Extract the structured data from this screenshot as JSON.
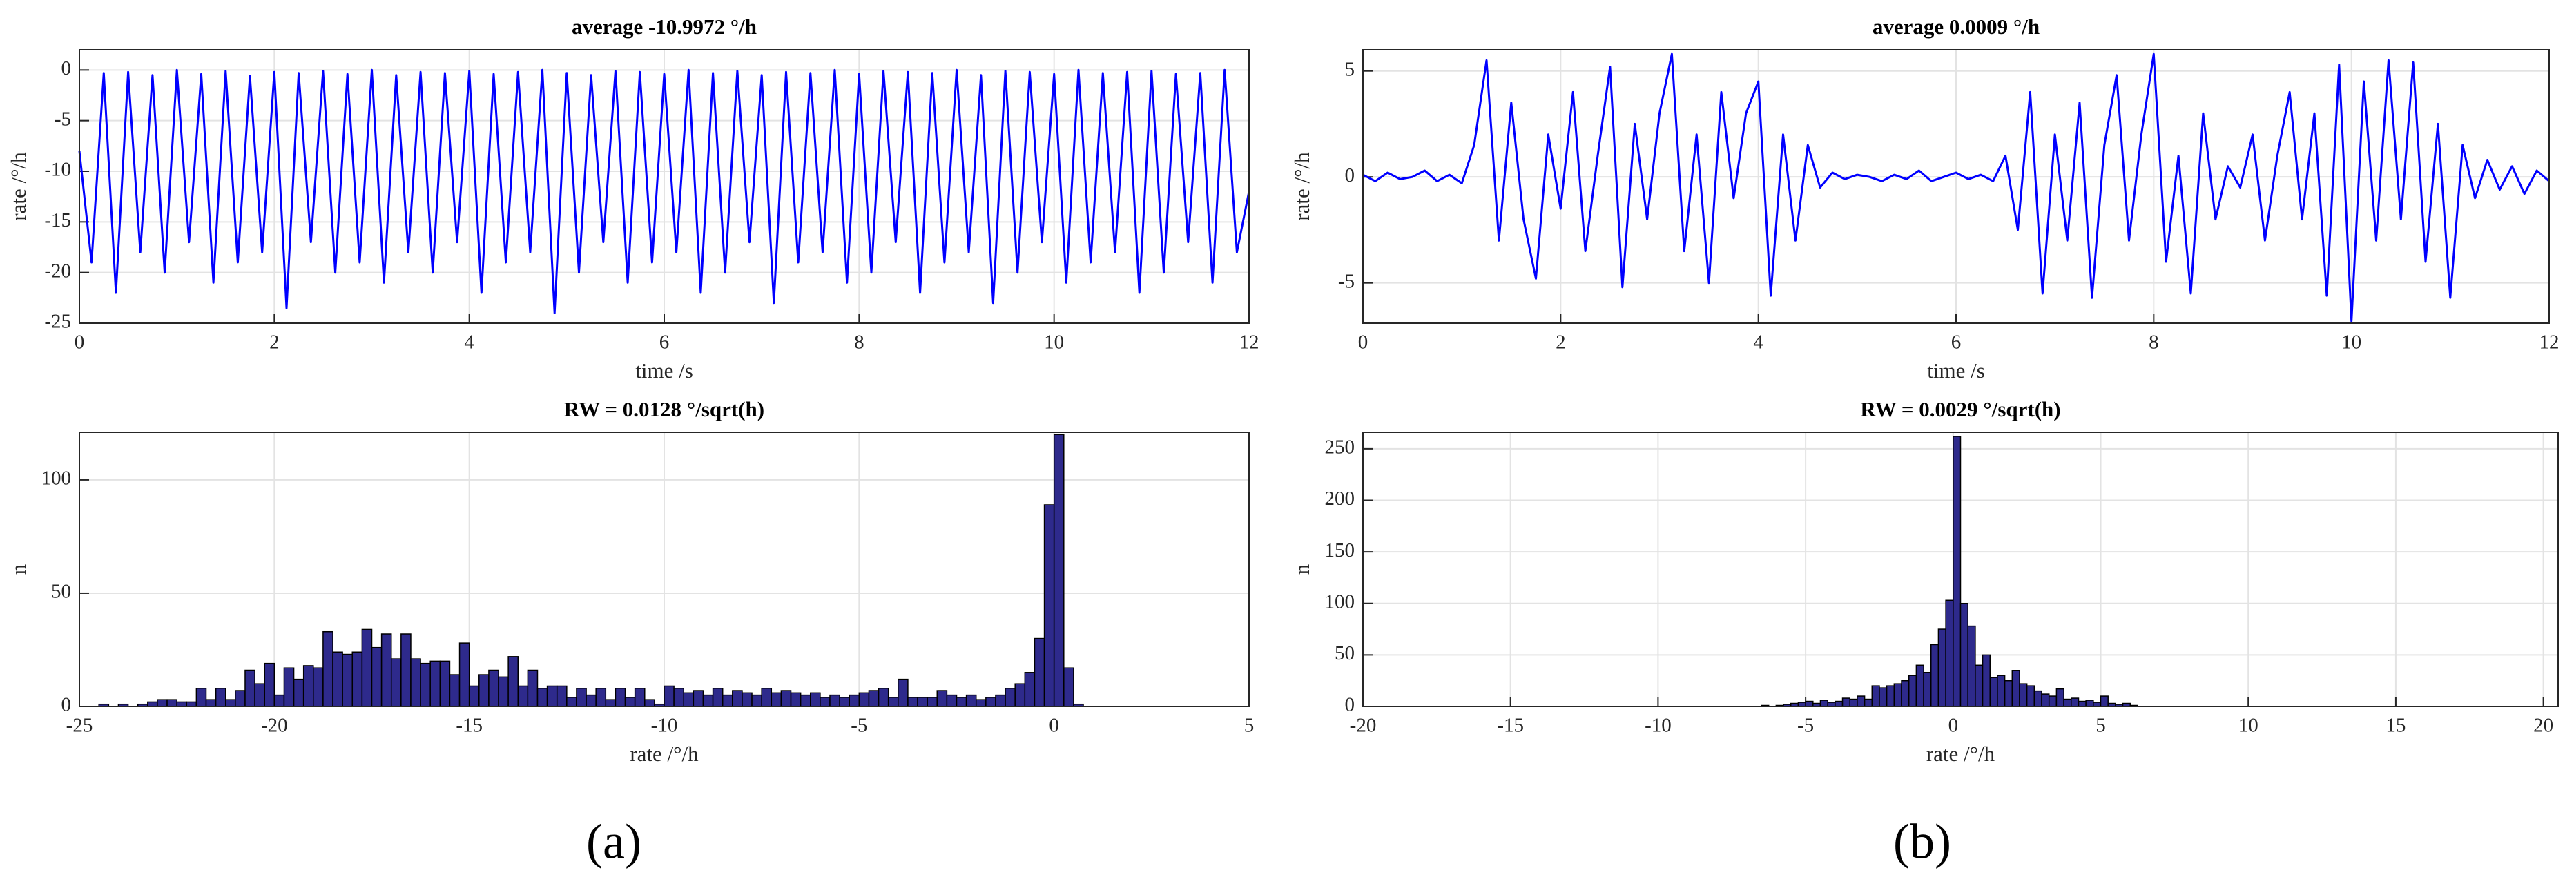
{
  "chart_data": [
    {
      "type": "line",
      "title": "average -10.9972 °/h",
      "xlabel": "time /s",
      "ylabel": "rate /°/h",
      "color": "#0000ff",
      "grid": true,
      "xlim": [
        0,
        12
      ],
      "ylim": [
        -25,
        2
      ],
      "xticks": [
        0,
        2,
        4,
        6,
        8,
        10,
        12
      ],
      "yticks": [
        -25,
        -20,
        -15,
        -10,
        -5,
        0
      ],
      "x": [
        0,
        0.125,
        0.25,
        0.375,
        0.5,
        0.625,
        0.75,
        0.875,
        1,
        1.125,
        1.25,
        1.375,
        1.5,
        1.625,
        1.75,
        1.875,
        2,
        2.125,
        2.25,
        2.375,
        2.5,
        2.625,
        2.75,
        2.875,
        3,
        3.125,
        3.25,
        3.375,
        3.5,
        3.625,
        3.75,
        3.875,
        4,
        4.125,
        4.25,
        4.375,
        4.5,
        4.625,
        4.75,
        4.875,
        5,
        5.125,
        5.25,
        5.375,
        5.5,
        5.625,
        5.75,
        5.875,
        6,
        6.125,
        6.25,
        6.375,
        6.5,
        6.625,
        6.75,
        6.875,
        7,
        7.125,
        7.25,
        7.375,
        7.5,
        7.625,
        7.75,
        7.875,
        8,
        8.125,
        8.25,
        8.375,
        8.5,
        8.625,
        8.75,
        8.875,
        9,
        9.125,
        9.25,
        9.375,
        9.5,
        9.625,
        9.75,
        9.875,
        10,
        10.125,
        10.25,
        10.375,
        10.5,
        10.625,
        10.75,
        10.875,
        11,
        11.125,
        11.25,
        11.375,
        11.5,
        11.625,
        11.75,
        11.875,
        12
      ],
      "values": [
        -8,
        -19,
        -0.3,
        -22,
        -0.2,
        -18,
        -0.5,
        -20,
        0,
        -17,
        -0.4,
        -21,
        -0.1,
        -19,
        -0.6,
        -18,
        -0.2,
        -23.5,
        -0.3,
        -17,
        -0.1,
        -20,
        -0.4,
        -19,
        0,
        -21,
        -0.5,
        -18,
        -0.2,
        -20,
        -0.3,
        -17,
        -0.1,
        -22,
        -0.4,
        -19,
        -0.2,
        -18,
        0,
        -24,
        -0.3,
        -20,
        -0.5,
        -17,
        -0.1,
        -21,
        -0.2,
        -19,
        -0.4,
        -18,
        0,
        -22,
        -0.3,
        -20,
        -0.1,
        -17,
        -0.5,
        -23,
        -0.2,
        -19,
        -0.3,
        -18,
        0,
        -21,
        -0.4,
        -20,
        -0.1,
        -17,
        -0.2,
        -22,
        -0.3,
        -19,
        0,
        -18,
        -0.5,
        -23,
        -0.1,
        -20,
        -0.2,
        -17,
        -0.4,
        -21,
        0,
        -19,
        -0.3,
        -18,
        -0.2,
        -22,
        -0.1,
        -20,
        -0.4,
        -17,
        -0.3,
        -21,
        0,
        -18,
        -12
      ]
    },
    {
      "type": "line",
      "title": "average 0.0009 °/h",
      "xlabel": "time /s",
      "ylabel": "rate /°/h",
      "color": "#0000ff",
      "grid": true,
      "xlim": [
        0,
        12
      ],
      "ylim": [
        -6.9,
        6
      ],
      "xticks": [
        0,
        2,
        4,
        6,
        8,
        10,
        12
      ],
      "yticks": [
        -5,
        0,
        5
      ],
      "x": [
        0,
        0.125,
        0.25,
        0.375,
        0.5,
        0.625,
        0.75,
        0.875,
        1,
        1.125,
        1.25,
        1.375,
        1.5,
        1.625,
        1.75,
        1.875,
        2,
        2.125,
        2.25,
        2.375,
        2.5,
        2.625,
        2.75,
        2.875,
        3,
        3.125,
        3.25,
        3.375,
        3.5,
        3.625,
        3.75,
        3.875,
        4,
        4.125,
        4.25,
        4.375,
        4.5,
        4.625,
        4.75,
        4.875,
        5,
        5.125,
        5.25,
        5.375,
        5.5,
        5.625,
        5.75,
        5.875,
        6,
        6.125,
        6.25,
        6.375,
        6.5,
        6.625,
        6.75,
        6.875,
        7,
        7.125,
        7.25,
        7.375,
        7.5,
        7.625,
        7.75,
        7.875,
        8,
        8.125,
        8.25,
        8.375,
        8.5,
        8.625,
        8.75,
        8.875,
        9,
        9.125,
        9.25,
        9.375,
        9.5,
        9.625,
        9.75,
        9.875,
        10,
        10.125,
        10.25,
        10.375,
        10.5,
        10.625,
        10.75,
        10.875,
        11,
        11.125,
        11.25,
        11.375,
        11.5,
        11.625,
        11.75,
        11.875,
        12
      ],
      "values": [
        0.1,
        -0.2,
        0.2,
        -0.1,
        0,
        0.3,
        -0.2,
        0.1,
        -0.3,
        1.5,
        5.5,
        -3,
        3.5,
        -2,
        -4.8,
        2,
        -1.5,
        4,
        -3.5,
        1,
        5.2,
        -5.2,
        2.5,
        -2,
        3,
        5.8,
        -3.5,
        2,
        -5,
        4,
        -1,
        3,
        4.5,
        -5.6,
        2,
        -3,
        1.5,
        -0.5,
        0.2,
        -0.1,
        0.1,
        0,
        -0.2,
        0.1,
        -0.1,
        0.3,
        -0.2,
        0,
        0.2,
        -0.1,
        0.1,
        -0.2,
        1,
        -2.5,
        4,
        -5.5,
        2,
        -3,
        3.5,
        -5.7,
        1.5,
        4.8,
        -3,
        2,
        5.8,
        -4,
        1,
        -5.5,
        3,
        -2,
        0.5,
        -0.5,
        2,
        -3,
        1,
        4,
        -2,
        3,
        -5.6,
        5.3,
        -6.8,
        4.5,
        -3,
        5.5,
        -2,
        5.4,
        -4,
        2.5,
        -5.7,
        1.5,
        -1,
        0.8,
        -0.6,
        0.5,
        -0.8,
        0.3,
        -0.2
      ]
    },
    {
      "type": "histogram",
      "title": "RW = 0.0128 °/sqrt(h)",
      "xlabel": "rate /°/h",
      "ylabel": "n",
      "color": "#2e2a8c",
      "grid": true,
      "xlim": [
        -25,
        5
      ],
      "ylim": [
        0,
        121
      ],
      "xticks": [
        -25,
        -20,
        -15,
        -10,
        -5,
        0,
        5
      ],
      "yticks": [
        0,
        50,
        100
      ],
      "bins": [
        -24.5,
        -24.25,
        -24,
        -23.75,
        -23.5,
        -23.25,
        -23,
        -22.75,
        -22.5,
        -22.25,
        -22,
        -21.75,
        -21.5,
        -21.25,
        -21,
        -20.75,
        -20.5,
        -20.25,
        -20,
        -19.75,
        -19.5,
        -19.25,
        -19,
        -18.75,
        -18.5,
        -18.25,
        -18,
        -17.75,
        -17.5,
        -17.25,
        -17,
        -16.75,
        -16.5,
        -16.25,
        -16,
        -15.75,
        -15.5,
        -15.25,
        -15,
        -14.75,
        -14.5,
        -14.25,
        -14,
        -13.75,
        -13.5,
        -13.25,
        -13,
        -12.75,
        -12.5,
        -12.25,
        -12,
        -11.75,
        -11.5,
        -11.25,
        -11,
        -10.75,
        -10.5,
        -10.25,
        -10,
        -9.75,
        -9.5,
        -9.25,
        -9,
        -8.75,
        -8.5,
        -8.25,
        -8,
        -7.75,
        -7.5,
        -7.25,
        -7,
        -6.75,
        -6.5,
        -6.25,
        -6,
        -5.75,
        -5.5,
        -5.25,
        -5,
        -4.75,
        -4.5,
        -4.25,
        -4,
        -3.75,
        -3.5,
        -3.25,
        -3,
        -2.75,
        -2.5,
        -2.25,
        -2,
        -1.75,
        -1.5,
        -1.25,
        -1,
        -0.75,
        -0.5,
        -0.25,
        0,
        0.25,
        0.5,
        0.75
      ],
      "values": [
        1,
        0,
        1,
        0,
        1,
        2,
        3,
        3,
        2,
        2,
        8,
        3,
        8,
        3,
        7,
        16,
        10,
        19,
        5,
        17,
        12,
        18,
        17,
        33,
        24,
        23,
        24,
        34,
        26,
        32,
        21,
        32,
        21,
        19,
        20,
        20,
        14,
        28,
        9,
        14,
        16,
        13,
        22,
        9,
        16,
        8,
        9,
        9,
        4,
        8,
        5,
        8,
        3,
        8,
        4,
        8,
        3,
        1,
        9,
        8,
        6,
        7,
        5,
        8,
        5,
        7,
        6,
        5,
        8,
        6,
        7,
        6,
        5,
        6,
        4,
        5,
        4,
        5,
        6,
        7,
        8,
        4,
        12,
        4,
        4,
        4,
        7,
        5,
        4,
        5,
        3,
        4,
        5,
        8,
        10,
        15,
        30,
        89,
        120,
        17,
        1
      ]
    },
    {
      "type": "histogram",
      "title": "RW = 0.0029 °/sqrt(h)",
      "xlabel": "rate /°/h",
      "ylabel": "n",
      "color": "#2e2a8c",
      "grid": true,
      "xlim": [
        -20,
        20.5
      ],
      "ylim": [
        0,
        266
      ],
      "xticks": [
        -20,
        -15,
        -10,
        -5,
        0,
        5,
        10,
        15,
        20
      ],
      "yticks": [
        0,
        50,
        100,
        150,
        200,
        250
      ],
      "bins": [
        -6.5,
        -6.25,
        -6,
        -5.75,
        -5.5,
        -5.25,
        -5,
        -4.75,
        -4.5,
        -4.25,
        -4,
        -3.75,
        -3.5,
        -3.25,
        -3,
        -2.75,
        -2.5,
        -2.25,
        -2,
        -1.75,
        -1.5,
        -1.25,
        -1,
        -0.75,
        -0.5,
        -0.25,
        0,
        0.25,
        0.5,
        0.75,
        1,
        1.25,
        1.5,
        1.75,
        2,
        2.25,
        2.5,
        2.75,
        3,
        3.25,
        3.5,
        3.75,
        4,
        4.25,
        4.5,
        4.75,
        5,
        5.25,
        5.5,
        5.75,
        6,
        6.25
      ],
      "values": [
        1,
        0,
        1,
        2,
        3,
        4,
        5,
        3,
        6,
        4,
        5,
        8,
        7,
        10,
        7,
        20,
        18,
        20,
        22,
        25,
        30,
        40,
        33,
        60,
        75,
        103,
        262,
        100,
        78,
        40,
        50,
        28,
        30,
        25,
        35,
        22,
        20,
        15,
        12,
        10,
        17,
        7,
        8,
        5,
        6,
        4,
        10,
        3,
        2,
        3,
        1
      ]
    }
  ],
  "captions": [
    "(a)",
    "(b)"
  ]
}
